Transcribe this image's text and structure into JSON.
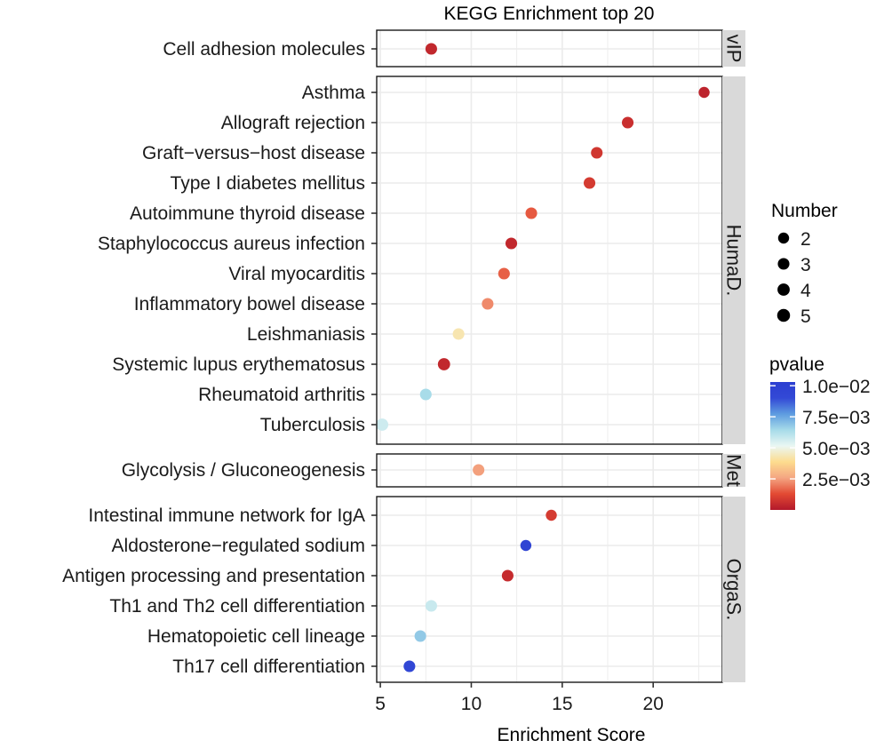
{
  "chart_data": {
    "type": "scatter",
    "title": "KEGG Enrichment top 20",
    "xlabel": "Enrichment Score",
    "ylabel": "",
    "xlim": [
      4.8,
      23.8
    ],
    "x_ticks": [
      5,
      10,
      15,
      20
    ],
    "grid": true,
    "legend_position": "right",
    "size_legend": {
      "title": "Number",
      "values": [
        2,
        3,
        4,
        5
      ]
    },
    "color_legend": {
      "title": "pvalue",
      "min": 0,
      "max": 0.0103,
      "colors": [
        "#b2182b",
        "#e34a33",
        "#f4a582",
        "#fddc8e",
        "#eaf7f3",
        "#a6dbe9",
        "#5e9ce0",
        "#3349d6",
        "#2c3fd1"
      ],
      "ticks": [
        {
          "value": 0.01,
          "label": "1.0e−02"
        },
        {
          "value": 0.0075,
          "label": "7.5e−03"
        },
        {
          "value": 0.005,
          "label": "5.0e−03"
        },
        {
          "value": 0.0025,
          "label": "2.5e−03"
        }
      ]
    },
    "panels": [
      {
        "strip": "vIP",
        "points": [
          {
            "term": "Cell adhesion molecules",
            "x": 7.8,
            "pvalue": 0.0004,
            "number": 3
          }
        ]
      },
      {
        "strip": "HumaD.",
        "points": [
          {
            "term": "Asthma",
            "x": 22.8,
            "pvalue": 0.0003,
            "number": 2
          },
          {
            "term": "Allograft rejection",
            "x": 18.6,
            "pvalue": 0.0006,
            "number": 3
          },
          {
            "term": "Graft−versus−host disease",
            "x": 16.9,
            "pvalue": 0.0008,
            "number": 3
          },
          {
            "term": "Type I diabetes mellitus",
            "x": 16.5,
            "pvalue": 0.0009,
            "number": 3
          },
          {
            "term": "Autoimmune thyroid disease",
            "x": 13.3,
            "pvalue": 0.0015,
            "number": 3
          },
          {
            "term": "Staphylococcus aureus infection",
            "x": 12.2,
            "pvalue": 0.0004,
            "number": 3
          },
          {
            "term": "Viral myocarditis",
            "x": 11.8,
            "pvalue": 0.0016,
            "number": 3
          },
          {
            "term": "Inflammatory bowel disease",
            "x": 10.9,
            "pvalue": 0.0022,
            "number": 3
          },
          {
            "term": "Leishmaniasis",
            "x": 9.3,
            "pvalue": 0.0043,
            "number": 3
          },
          {
            "term": "Systemic lupus erythematosus",
            "x": 8.5,
            "pvalue": 0.0004,
            "number": 4
          },
          {
            "term": "Rheumatoid arthritis",
            "x": 7.5,
            "pvalue": 0.0064,
            "number": 3
          },
          {
            "term": "Tuberculosis",
            "x": 5.1,
            "pvalue": 0.0057,
            "number": 4
          }
        ]
      },
      {
        "strip": "Met",
        "points": [
          {
            "term": "Glycolysis / Gluconeogenesis",
            "x": 10.4,
            "pvalue": 0.0025,
            "number": 3
          }
        ]
      },
      {
        "strip": "OrgaS.",
        "points": [
          {
            "term": "Intestinal immune network for IgA",
            "x": 14.4,
            "pvalue": 0.0009,
            "number": 2
          },
          {
            "term": "Aldosterone−regulated sodium ",
            "x": 13.0,
            "pvalue": 0.0097,
            "number": 2
          },
          {
            "term": "Antigen processing and presentation",
            "x": 12.0,
            "pvalue": 0.0005,
            "number": 3
          },
          {
            "term": "Th1 and Th2 cell differentiation",
            "x": 7.8,
            "pvalue": 0.0058,
            "number": 3
          },
          {
            "term": "Hematopoietic cell lineage",
            "x": 7.2,
            "pvalue": 0.0068,
            "number": 3
          },
          {
            "term": "Th17 cell differentiation",
            "x": 6.6,
            "pvalue": 0.0093,
            "number": 3
          }
        ]
      }
    ]
  }
}
